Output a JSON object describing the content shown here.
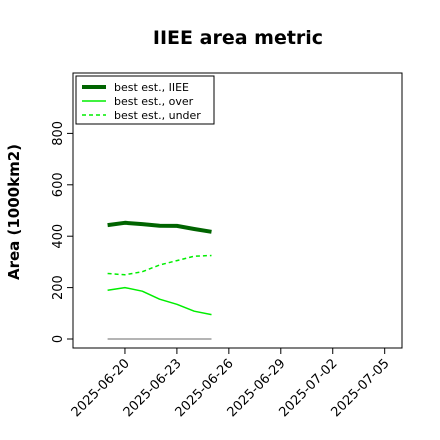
{
  "chart_data": {
    "type": "line",
    "title": "IIEE area metric",
    "xlabel": "",
    "ylabel": "Area (1000km2)",
    "x_ticks": [
      "2025-06-20",
      "2025-06-23",
      "2025-06-26",
      "2025-06-29",
      "2025-07-02",
      "2025-07-05"
    ],
    "y_ticks": [
      "0",
      "200",
      "400",
      "600",
      "800"
    ],
    "xlim": [
      "2025-06-17",
      "2025-07-06"
    ],
    "ylim": [
      -35,
      1035
    ],
    "grid": false,
    "legend_position": "top-left",
    "x": [
      "2025-06-19",
      "2025-06-20",
      "2025-06-21",
      "2025-06-22",
      "2025-06-23",
      "2025-06-24",
      "2025-06-25"
    ],
    "series": [
      {
        "name": "best est., IIEE",
        "color": "#006400",
        "style": "solid",
        "width": "thick",
        "values": [
          443,
          452,
          447,
          441,
          440,
          428,
          417
        ]
      },
      {
        "name": "best est., over",
        "color": "#00ee00",
        "style": "solid",
        "width": "thin",
        "values": [
          190,
          200,
          186,
          155,
          135,
          108,
          95
        ]
      },
      {
        "name": "best est., under",
        "color": "#00ee00",
        "style": "dashed",
        "width": "thin",
        "values": [
          255,
          250,
          262,
          288,
          305,
          322,
          325
        ]
      }
    ],
    "baseline": {
      "color": "#888888",
      "values": [
        0,
        0,
        0,
        0,
        0,
        0,
        0
      ]
    }
  }
}
